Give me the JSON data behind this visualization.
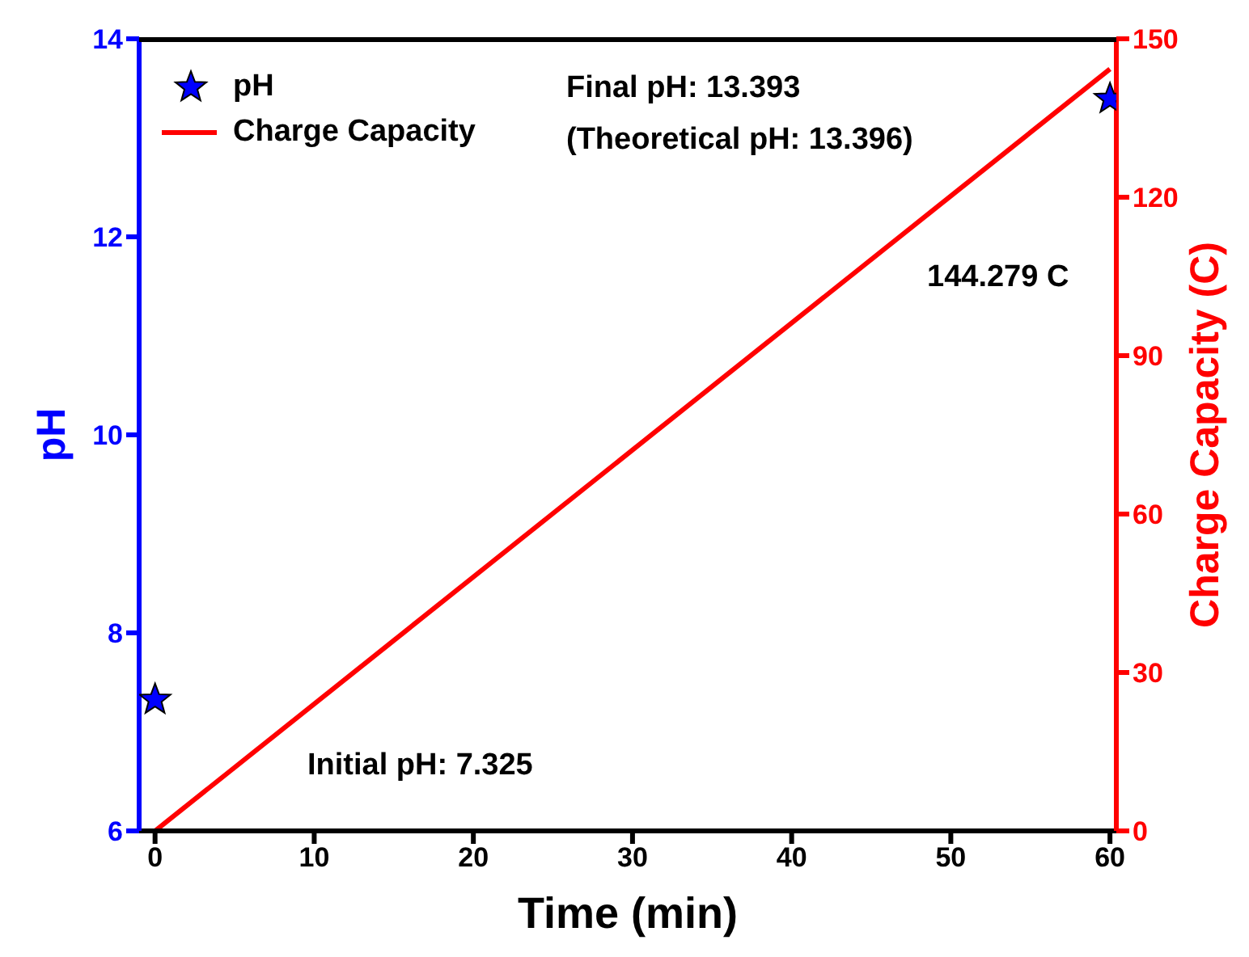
{
  "chart_data": {
    "type": "scatter",
    "xlabel": "Time (min)",
    "ylabel": "pH",
    "y2label": "Charge Capacity (C)",
    "x": [
      0,
      60
    ],
    "xlim": [
      -1,
      60.4
    ],
    "xticks": [
      0,
      10,
      20,
      30,
      40,
      50,
      60
    ],
    "ylim": [
      6,
      14
    ],
    "yticks": [
      6,
      8,
      10,
      12,
      14
    ],
    "y2lim": [
      0,
      150
    ],
    "y2ticks": [
      0,
      30,
      60,
      90,
      120,
      150
    ],
    "series": [
      {
        "name": "pH",
        "marker": "star",
        "color": "#0000ff",
        "values": [
          7.325,
          13.393
        ]
      },
      {
        "name": "Charge Capacity",
        "type": "line",
        "axis": "y2",
        "color": "#ff0000",
        "values": [
          0,
          144.279
        ]
      }
    ],
    "legend": "top left",
    "grid": false,
    "annotations": [
      "Final pH: 13.393",
      "(Theoretical pH: 13.396)",
      "144.279 C",
      "Initial pH: 7.325"
    ]
  }
}
